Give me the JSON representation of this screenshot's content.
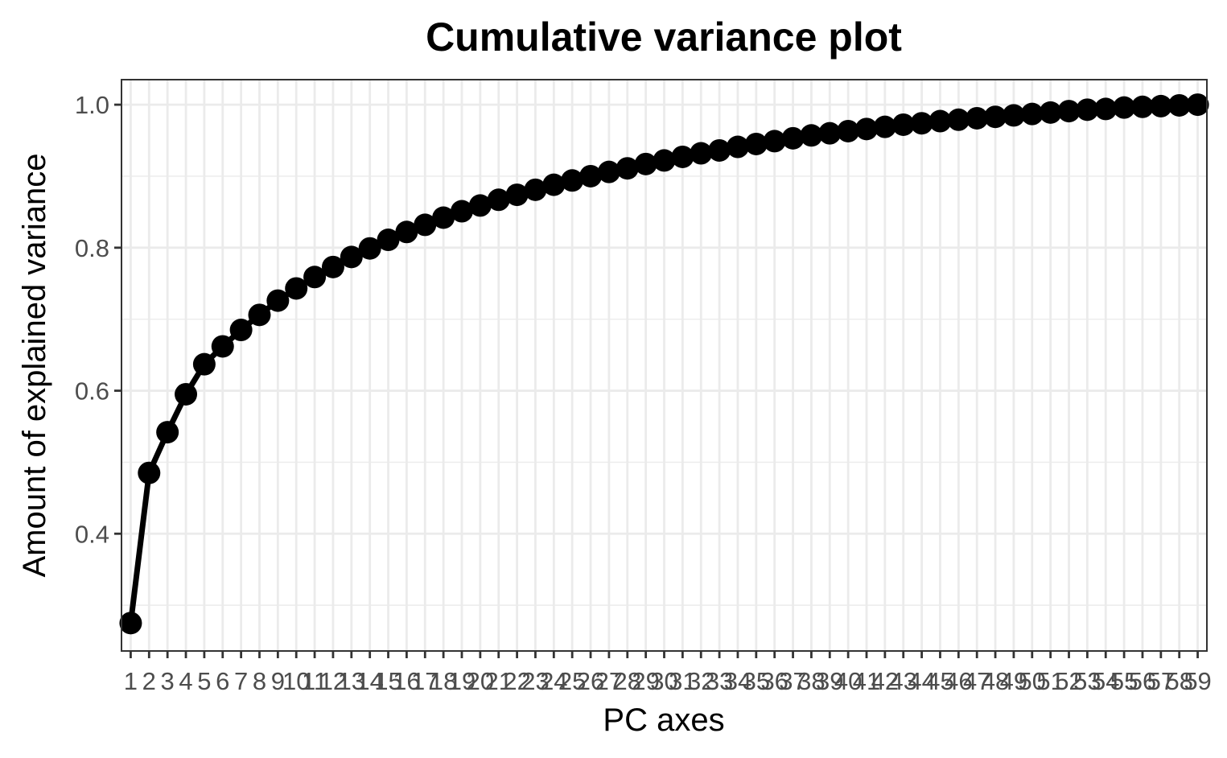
{
  "chart_data": {
    "type": "line",
    "title": "Cumulative variance plot",
    "xlabel": "PC axes",
    "ylabel": "Amount of explained variance",
    "x": [
      1,
      2,
      3,
      4,
      5,
      6,
      7,
      8,
      9,
      10,
      11,
      12,
      13,
      14,
      15,
      16,
      17,
      18,
      19,
      20,
      21,
      22,
      23,
      24,
      25,
      26,
      27,
      28,
      29,
      30,
      31,
      32,
      33,
      34,
      35,
      36,
      37,
      38,
      39,
      40,
      41,
      42,
      43,
      44,
      45,
      46,
      47,
      48,
      49,
      50,
      51,
      52,
      53,
      54,
      55,
      56,
      57,
      58,
      59
    ],
    "x_tick_labels": [
      "1",
      "2",
      "3",
      "4",
      "5",
      "6",
      "7",
      "8",
      "9",
      "10",
      "11",
      "12",
      "13",
      "14",
      "15",
      "16",
      "17",
      "18",
      "19",
      "20",
      "21",
      "22",
      "23",
      "24",
      "25",
      "26",
      "27",
      "28",
      "29",
      "30",
      "31",
      "32",
      "33",
      "34",
      "35",
      "36",
      "37",
      "38",
      "39",
      "40",
      "41",
      "42",
      "43",
      "44",
      "45",
      "46",
      "47",
      "48",
      "49",
      "50",
      "51",
      "52",
      "53",
      "54",
      "55",
      "56",
      "57",
      "58",
      "59"
    ],
    "xlim": [
      0.5,
      59.5
    ],
    "y_ticks": [
      0.4,
      0.6,
      0.8,
      1.0
    ],
    "y_tick_labels": [
      "0.4",
      "0.6",
      "0.8",
      "1.0"
    ],
    "ylim": [
      0.236,
      1.035
    ],
    "grid": true,
    "series": [
      {
        "color": "#000000",
        "values": [
          0.275,
          0.485,
          0.542,
          0.595,
          0.637,
          0.662,
          0.685,
          0.706,
          0.726,
          0.743,
          0.759,
          0.773,
          0.787,
          0.799,
          0.811,
          0.822,
          0.832,
          0.842,
          0.851,
          0.859,
          0.867,
          0.874,
          0.881,
          0.888,
          0.894,
          0.9,
          0.906,
          0.911,
          0.917,
          0.922,
          0.927,
          0.932,
          0.936,
          0.941,
          0.945,
          0.949,
          0.953,
          0.957,
          0.96,
          0.963,
          0.966,
          0.969,
          0.972,
          0.974,
          0.977,
          0.979,
          0.981,
          0.983,
          0.985,
          0.987,
          0.989,
          0.991,
          0.993,
          0.994,
          0.996,
          0.997,
          0.998,
          0.999,
          1.0
        ]
      }
    ]
  }
}
